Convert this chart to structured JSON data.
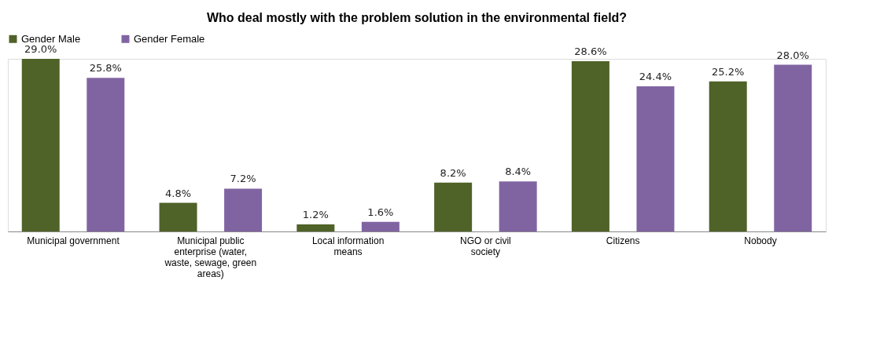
{
  "chart_data": {
    "type": "bar",
    "title": "Who deal mostly  with the problem solution in the environmental field?",
    "categories": [
      "Municipal government",
      "Municipal public enterprise (water, waste, sewage, green areas)",
      "Local information means",
      "NGO or  civil society",
      "Citizens",
      "Nobody"
    ],
    "series": [
      {
        "name": "Gender Male",
        "color": "#4f6228",
        "values": [
          29.0,
          4.8,
          1.2,
          8.2,
          28.6,
          25.2
        ],
        "value_labels": [
          "29.0%",
          "4.8%",
          "1.2%",
          "8.2%",
          "28.6%",
          "25.2%"
        ]
      },
      {
        "name": "Gender Female",
        "color": "#8064a2",
        "values": [
          25.8,
          7.2,
          1.6,
          8.4,
          24.4,
          28.0
        ],
        "value_labels": [
          "25.8%",
          "7.2%",
          "1.6%",
          "8.4%",
          "24.4%",
          "28.0%"
        ]
      }
    ],
    "legend": "top",
    "grid": false
  }
}
